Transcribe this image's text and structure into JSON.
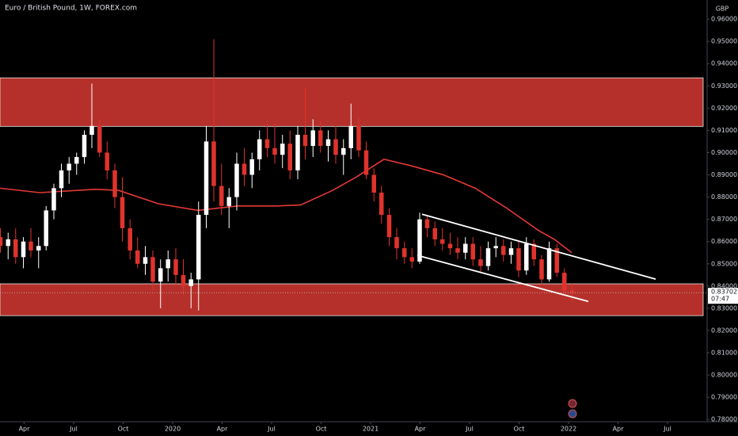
{
  "chart_data": {
    "type": "candlestick",
    "title": "Euro / British Pound, 1W, FOREX.com",
    "currency": "GBP",
    "countdown": "07:47",
    "xlim": [
      2019.128,
      2022.7
    ],
    "ylim": [
      0.779,
      0.9686
    ],
    "xticks": [
      {
        "value": 2019.25,
        "label": "Apr"
      },
      {
        "value": 2019.5,
        "label": "Jul"
      },
      {
        "value": 2019.75,
        "label": "Oct"
      },
      {
        "value": 2020,
        "label": "2020"
      },
      {
        "value": 2020.25,
        "label": "Apr"
      },
      {
        "value": 2020.5,
        "label": "Jul"
      },
      {
        "value": 2020.75,
        "label": "Oct"
      },
      {
        "value": 2021,
        "label": "2021"
      },
      {
        "value": 2021.25,
        "label": "Apr"
      },
      {
        "value": 2021.5,
        "label": "Jul"
      },
      {
        "value": 2021.75,
        "label": "Oct"
      },
      {
        "value": 2022,
        "label": "2022"
      },
      {
        "value": 2022.25,
        "label": "Apr"
      },
      {
        "value": 2022.5,
        "label": "Jul"
      }
    ],
    "yticks": [
      {
        "value": 0.78,
        "label": "0.78000"
      },
      {
        "value": 0.79,
        "label": "0.79000"
      },
      {
        "value": 0.8,
        "label": "0.80000"
      },
      {
        "value": 0.81,
        "label": "0.81000"
      },
      {
        "value": 0.82,
        "label": "0.82000"
      },
      {
        "value": 0.83,
        "label": "0.83000"
      },
      {
        "value": 0.84,
        "label": "0.84000"
      },
      {
        "value": 0.85,
        "label": "0.85000"
      },
      {
        "value": 0.86,
        "label": "0.86000"
      },
      {
        "value": 0.87,
        "label": "0.87000"
      },
      {
        "value": 0.88,
        "label": "0.88000"
      },
      {
        "value": 0.89,
        "label": "0.89000"
      },
      {
        "value": 0.9,
        "label": "0.90000"
      },
      {
        "value": 0.91,
        "label": "0.91000"
      },
      {
        "value": 0.92,
        "label": "0.92000"
      },
      {
        "value": 0.93,
        "label": "0.93000"
      },
      {
        "value": 0.94,
        "label": "0.94000"
      },
      {
        "value": 0.95,
        "label": "0.95000"
      },
      {
        "value": 0.96,
        "label": "0.96000"
      }
    ],
    "up_color": "#ffffff",
    "down_color": "#e0332d",
    "x": [
      2019.13,
      2019.169,
      2019.207,
      2019.246,
      2019.284,
      2019.323,
      2019.361,
      2019.4,
      2019.438,
      2019.477,
      2019.515,
      2019.554,
      2019.592,
      2019.631,
      2019.669,
      2019.708,
      2019.746,
      2019.785,
      2019.823,
      2019.862,
      2019.9,
      2019.939,
      2019.977,
      2020.016,
      2020.054,
      2020.093,
      2020.131,
      2020.17,
      2020.208,
      2020.247,
      2020.285,
      2020.324,
      2020.362,
      2020.401,
      2020.439,
      2020.478,
      2020.516,
      2020.555,
      2020.593,
      2020.632,
      2020.67,
      2020.709,
      2020.747,
      2020.786,
      2020.824,
      2020.863,
      2020.901,
      2020.94,
      2020.978,
      2021.017,
      2021.055,
      2021.094,
      2021.132,
      2021.171,
      2021.209,
      2021.248,
      2021.286,
      2021.325,
      2021.363,
      2021.402,
      2021.44,
      2021.479,
      2021.517,
      2021.556,
      2021.594,
      2021.633,
      2021.671,
      2021.71,
      2021.748,
      2021.787,
      2021.825,
      2021.864,
      2021.902,
      2021.941,
      2021.979,
      2022.018
    ],
    "open": [
      0.862,
      0.858,
      0.861,
      0.853,
      0.86,
      0.856,
      0.858,
      0.874,
      0.884,
      0.892,
      0.895,
      0.898,
      0.908,
      0.912,
      0.9,
      0.892,
      0.88,
      0.866,
      0.856,
      0.85,
      0.853,
      0.842,
      0.848,
      0.852,
      0.845,
      0.84,
      0.843,
      0.872,
      0.905,
      0.885,
      0.876,
      0.88,
      0.895,
      0.89,
      0.897,
      0.906,
      0.902,
      0.899,
      0.904,
      0.892,
      0.908,
      0.903,
      0.91,
      0.903,
      0.906,
      0.899,
      0.902,
      0.912,
      0.901,
      0.89,
      0.882,
      0.872,
      0.862,
      0.857,
      0.853,
      0.851,
      0.87,
      0.866,
      0.861,
      0.859,
      0.857,
      0.855,
      0.859,
      0.852,
      0.849,
      0.857,
      0.858,
      0.854,
      0.857,
      0.847,
      0.859,
      0.852,
      0.843,
      0.857,
      0.846,
      0.838
    ],
    "high": [
      0.866,
      0.864,
      0.866,
      0.862,
      0.866,
      0.862,
      0.876,
      0.886,
      0.895,
      0.898,
      0.9,
      0.91,
      0.931,
      0.915,
      0.905,
      0.895,
      0.889,
      0.87,
      0.862,
      0.858,
      0.856,
      0.852,
      0.856,
      0.857,
      0.852,
      0.846,
      0.878,
      0.912,
      0.951,
      0.895,
      0.884,
      0.9,
      0.902,
      0.9,
      0.91,
      0.913,
      0.913,
      0.908,
      0.91,
      0.912,
      0.929,
      0.915,
      0.914,
      0.91,
      0.912,
      0.906,
      0.922,
      0.916,
      0.905,
      0.893,
      0.885,
      0.875,
      0.866,
      0.86,
      0.857,
      0.873,
      0.872,
      0.869,
      0.866,
      0.864,
      0.862,
      0.862,
      0.862,
      0.858,
      0.86,
      0.862,
      0.861,
      0.86,
      0.86,
      0.862,
      0.861,
      0.854,
      0.86,
      0.859,
      0.848,
      0.841
    ],
    "low": [
      0.855,
      0.852,
      0.85,
      0.848,
      0.853,
      0.848,
      0.856,
      0.87,
      0.88,
      0.886,
      0.89,
      0.895,
      0.902,
      0.898,
      0.888,
      0.875,
      0.86,
      0.852,
      0.848,
      0.845,
      0.838,
      0.83,
      0.842,
      0.84,
      0.836,
      0.83,
      0.829,
      0.866,
      0.878,
      0.872,
      0.866,
      0.874,
      0.885,
      0.884,
      0.892,
      0.898,
      0.895,
      0.893,
      0.888,
      0.888,
      0.897,
      0.898,
      0.9,
      0.896,
      0.895,
      0.89,
      0.897,
      0.898,
      0.888,
      0.878,
      0.868,
      0.858,
      0.852,
      0.85,
      0.848,
      0.85,
      0.862,
      0.858,
      0.856,
      0.854,
      0.852,
      0.852,
      0.849,
      0.846,
      0.847,
      0.853,
      0.851,
      0.85,
      0.844,
      0.845,
      0.849,
      0.84,
      0.842,
      0.844,
      0.836,
      0.833
    ],
    "close": [
      0.858,
      0.861,
      0.853,
      0.86,
      0.856,
      0.858,
      0.874,
      0.884,
      0.892,
      0.895,
      0.898,
      0.908,
      0.912,
      0.9,
      0.892,
      0.88,
      0.866,
      0.856,
      0.85,
      0.853,
      0.842,
      0.848,
      0.852,
      0.845,
      0.84,
      0.843,
      0.872,
      0.905,
      0.885,
      0.876,
      0.88,
      0.895,
      0.89,
      0.897,
      0.906,
      0.902,
      0.899,
      0.904,
      0.892,
      0.908,
      0.903,
      0.91,
      0.903,
      0.906,
      0.899,
      0.902,
      0.912,
      0.901,
      0.89,
      0.882,
      0.872,
      0.862,
      0.857,
      0.853,
      0.851,
      0.87,
      0.866,
      0.861,
      0.859,
      0.857,
      0.855,
      0.859,
      0.852,
      0.849,
      0.857,
      0.858,
      0.854,
      0.857,
      0.847,
      0.859,
      0.852,
      0.843,
      0.857,
      0.846,
      0.838,
      0.83702
    ],
    "moving_average": {
      "color": "#e53935",
      "x": [
        2019.128,
        2019.328,
        2019.608,
        2019.728,
        2019.928,
        2020.128,
        2020.328,
        2020.528,
        2020.648,
        2020.808,
        2020.928,
        2021.068,
        2021.208,
        2021.368,
        2021.528,
        2021.688,
        2021.848,
        2021.928,
        2022.016
      ],
      "values": [
        0.884,
        0.882,
        0.8835,
        0.883,
        0.877,
        0.874,
        0.876,
        0.876,
        0.8765,
        0.883,
        0.889,
        0.897,
        0.894,
        0.89,
        0.884,
        0.875,
        0.865,
        0.861,
        0.855
      ]
    },
    "zones": [
      {
        "top": 0.9336,
        "bottom": 0.9118,
        "color": "#b5302a"
      },
      {
        "top": 0.841,
        "bottom": 0.8267,
        "color": "#b5302a"
      }
    ],
    "trend_lines": [
      {
        "x": [
          2021.26,
          2022.44
        ],
        "values": [
          0.8723,
          0.8431
        ],
        "color": "#ffffff"
      },
      {
        "x": [
          2021.236,
          2022.1
        ],
        "values": [
          0.8538,
          0.8331
        ],
        "color": "#ffffff"
      }
    ]
  }
}
